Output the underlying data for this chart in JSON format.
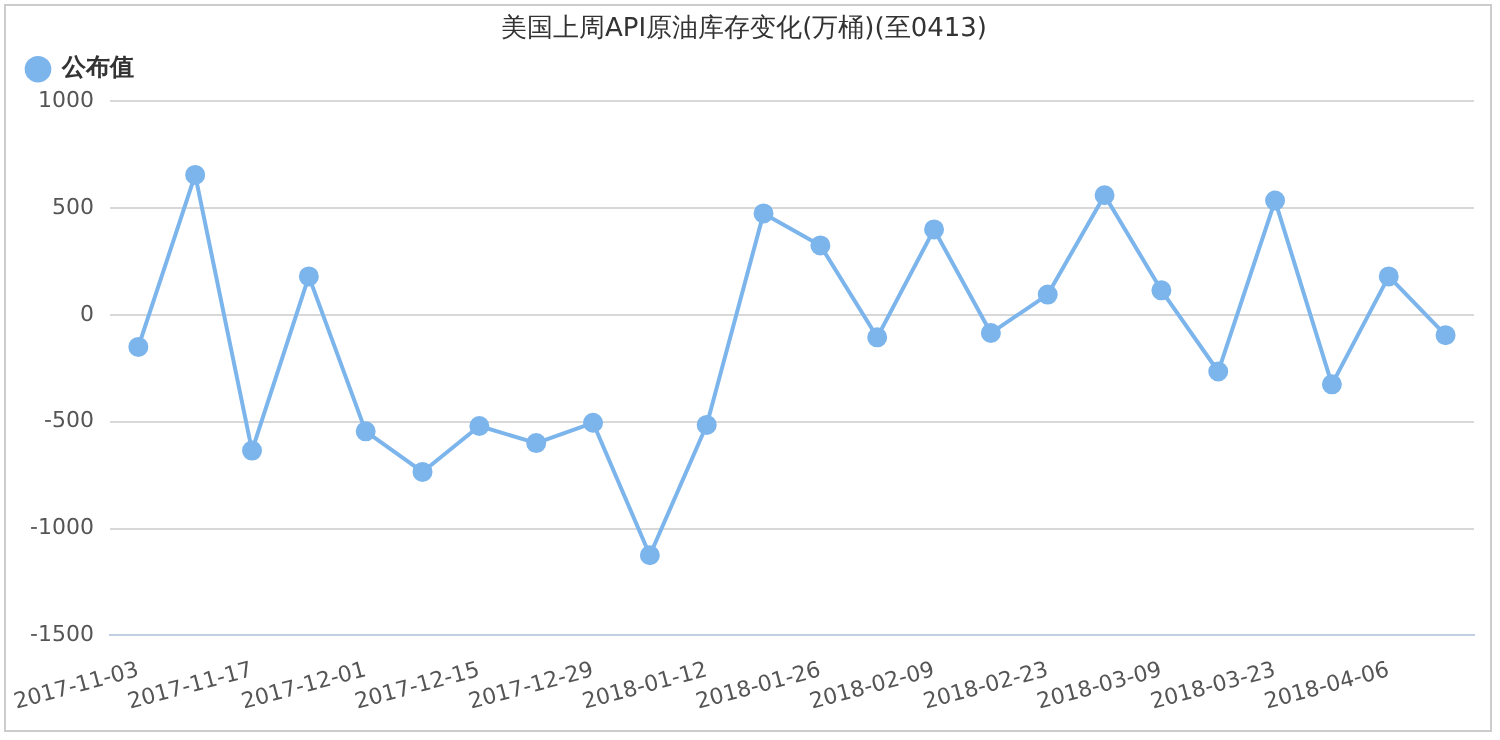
{
  "chart_data": {
    "type": "line",
    "title": "美国上周API原油库存变化(万桶)(至0413)",
    "categories": [
      "2017-11-03",
      null,
      "2017-11-17",
      null,
      "2017-12-01",
      null,
      "2017-12-15",
      null,
      "2017-12-29",
      null,
      "2018-01-12",
      null,
      "2018-01-26",
      null,
      "2018-02-09",
      null,
      "2018-02-23",
      null,
      "2018-03-09",
      null,
      "2018-03-23",
      null,
      "2018-04-06",
      null
    ],
    "series": [
      {
        "name": "公布值",
        "color": "#7cb5ec",
        "values": [
          -150,
          655,
          -635,
          180,
          -545,
          -735,
          -520,
          -600,
          -505,
          -1125,
          -515,
          475,
          325,
          -105,
          400,
          -85,
          95,
          560,
          115,
          -265,
          535,
          -325,
          180,
          -95
        ]
      }
    ],
    "ylim": [
      -1500,
      1000
    ],
    "yticks": [
      -1500,
      -1000,
      -500,
      0,
      500,
      1000
    ],
    "grid": "y",
    "legend": "top left",
    "marker": "circle"
  }
}
